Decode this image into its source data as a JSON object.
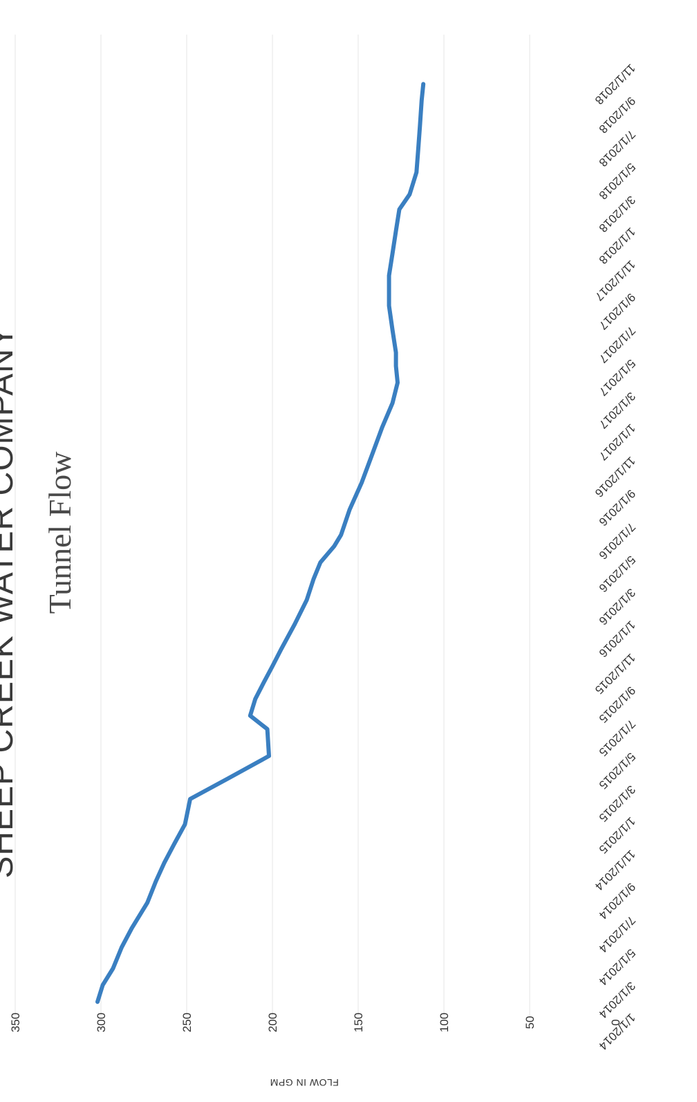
{
  "chart_data": {
    "type": "line",
    "title": "SHEEP CREEK WATER COMPANY",
    "subtitle": "Tunnel Flow",
    "ylabel": "FLOW IN GPM",
    "xlabel": "",
    "ylim": [
      0,
      350
    ],
    "yticks": [
      0,
      50,
      100,
      150,
      200,
      250,
      300,
      350
    ],
    "xlim": [
      "2014-01-01",
      "2019-01-01"
    ],
    "xtick_labels": [
      "1/1/2014",
      "3/1/2014",
      "5/1/2014",
      "7/1/2014",
      "9/1/2014",
      "11/1/2014",
      "1/1/2015",
      "3/1/2015",
      "5/1/2015",
      "7/1/2015",
      "9/1/2015",
      "11/1/2015",
      "1/1/2016",
      "3/1/2016",
      "5/1/2016",
      "7/1/2016",
      "9/1/2016",
      "11/1/2016",
      "1/1/2017",
      "3/1/2017",
      "5/1/2017",
      "7/1/2017",
      "9/1/2017",
      "11/1/2017",
      "1/1/2018",
      "3/1/2018",
      "5/1/2018",
      "7/1/2018",
      "9/1/2018",
      "11/1/2018"
    ],
    "orientation": "rotated-90-clockwise",
    "grid": true,
    "legend": "none",
    "color": "#3a7fc1",
    "series": [
      {
        "x": [
          "2014-01-29",
          "2014-03-01",
          "2014-04-01",
          "2014-05-10",
          "2014-06-15",
          "2014-08-01",
          "2014-09-10",
          "2014-10-15",
          "2014-11-20",
          "2014-12-25",
          "2015-02-10",
          "2015-03-20",
          "2015-05-01",
          "2015-06-20",
          "2015-07-15",
          "2015-08-15",
          "2015-09-15",
          "2015-10-15",
          "2015-11-15",
          "2016-01-01",
          "2016-02-15",
          "2016-03-25",
          "2016-04-25",
          "2016-05-25",
          "2016-06-15",
          "2016-08-01",
          "2016-09-20",
          "2016-11-10",
          "2017-01-01",
          "2017-02-15",
          "2017-03-25",
          "2017-04-25",
          "2017-05-20",
          "2017-07-01",
          "2017-08-15",
          "2017-10-10",
          "2017-11-20",
          "2018-01-01",
          "2018-02-10",
          "2018-03-10",
          "2018-04-20",
          "2018-06-01",
          "2018-07-15",
          "2018-09-01",
          "2018-10-01"
        ],
        "y": [
          302,
          299,
          293,
          288,
          282,
          273,
          268,
          263,
          257,
          251,
          248,
          226,
          202,
          203,
          213,
          210,
          205,
          200,
          195,
          187,
          180,
          176,
          172,
          164,
          160,
          155,
          148,
          142,
          136,
          130,
          127,
          128,
          128,
          130,
          132,
          132,
          130,
          128,
          126,
          120,
          116,
          115,
          114,
          113,
          112
        ]
      }
    ]
  }
}
